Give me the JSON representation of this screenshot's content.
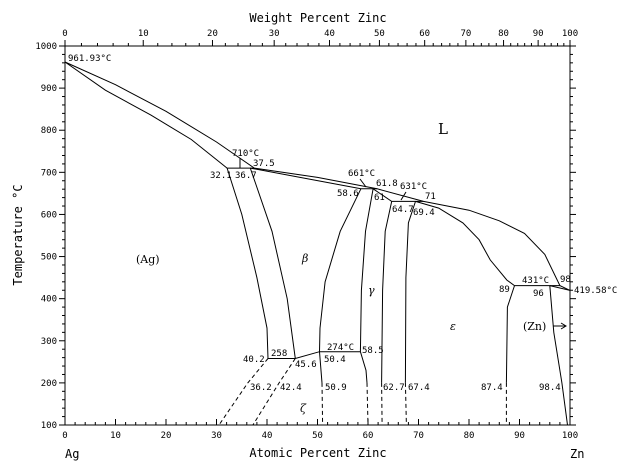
{
  "diagram": {
    "top_axis_title": "Weight Percent Zinc",
    "bottom_axis_title": "Atomic Percent Zinc",
    "y_axis_title": "Temperature °C",
    "left_element": "Ag",
    "right_element": "Zn",
    "x_ticks": [
      "0",
      "10",
      "20",
      "30",
      "40",
      "50",
      "60",
      "70",
      "80",
      "90",
      "100"
    ],
    "top_ticks": [
      "0",
      "10",
      "20",
      "30",
      "40",
      "50",
      "60",
      "70",
      "80",
      "90",
      "100"
    ],
    "y_ticks": [
      "100",
      "200",
      "300",
      "400",
      "500",
      "600",
      "700",
      "800",
      "900",
      "1000"
    ],
    "phases": {
      "L": "L",
      "Ag": "(Ag)",
      "beta": "β",
      "gamma": "γ",
      "epsilon": "ε",
      "zeta": "ζ",
      "Zn": "(Zn)"
    },
    "annotations": {
      "t_ag": "961.93°C",
      "t710": "710°C",
      "c375": "37.5",
      "c321": "32.1",
      "c367": "36.7",
      "t661": "661°C",
      "c618": "61.8",
      "c586": "58.6",
      "c61": "61",
      "t631": "631°C",
      "c71": "71",
      "c647": "64.7",
      "c694": "69.4",
      "t431": "431°C",
      "c98": "98",
      "c89": "89",
      "c96": "96",
      "t_zn": "419.58°C",
      "t274": "274°C",
      "c585": "58.5",
      "c402": "40.2",
      "t258": "258",
      "c456": "45.6",
      "c504": "50.4",
      "c362": "36.2",
      "c424": "42.4",
      "c509": "50.9",
      "c627": "62.7",
      "c674": "67.4",
      "c874": "87.4",
      "c984": "98.4"
    }
  },
  "chart_data": {
    "type": "phase-diagram",
    "x_axis": "Atomic Percent Zinc",
    "y_axis": "Temperature °C",
    "xlim": [
      0,
      100
    ],
    "ylim": [
      100,
      1000
    ],
    "solid_lines": [
      [
        [
          0,
          961.93
        ],
        [
          10,
          908
        ],
        [
          20,
          845
        ],
        [
          30,
          772
        ],
        [
          37.5,
          710
        ],
        [
          50,
          688
        ],
        [
          61.8,
          661
        ],
        [
          71,
          631
        ],
        [
          80,
          610
        ],
        [
          86,
          585
        ],
        [
          91,
          555
        ],
        [
          95,
          505
        ],
        [
          98,
          431
        ],
        [
          100,
          419.58
        ]
      ],
      [
        [
          0,
          961.93
        ],
        [
          8,
          895
        ],
        [
          17,
          836
        ],
        [
          25,
          778
        ],
        [
          32.1,
          710
        ],
        [
          37.5,
          710
        ]
      ],
      [
        [
          36.7,
          710
        ],
        [
          48,
          685
        ],
        [
          58.6,
          661
        ],
        [
          61.8,
          661
        ]
      ],
      [
        [
          61,
          661
        ],
        [
          64.7,
          631
        ],
        [
          71,
          631
        ]
      ],
      [
        [
          69.4,
          631
        ],
        [
          74,
          615
        ],
        [
          78.8,
          580
        ],
        [
          82,
          540
        ],
        [
          84.2,
          492
        ],
        [
          87.5,
          444
        ],
        [
          89,
          431
        ],
        [
          98,
          431
        ]
      ],
      [
        [
          96,
          431
        ],
        [
          100,
          419.58
        ]
      ],
      [
        [
          32.1,
          710
        ],
        [
          35,
          600
        ],
        [
          38,
          450
        ],
        [
          40,
          330
        ],
        [
          40.2,
          258
        ],
        [
          45.6,
          258
        ],
        [
          50.4,
          274
        ],
        [
          58.5,
          274
        ]
      ],
      [
        [
          36.7,
          710
        ],
        [
          41,
          560
        ],
        [
          44,
          400
        ],
        [
          45.6,
          258
        ]
      ],
      [
        [
          58.6,
          661
        ],
        [
          54.5,
          560
        ],
        [
          51.5,
          440
        ],
        [
          50.5,
          330
        ],
        [
          50.4,
          274
        ],
        [
          50.9,
          200
        ]
      ],
      [
        [
          61,
          661
        ],
        [
          59.5,
          560
        ],
        [
          58.7,
          420
        ],
        [
          58.5,
          274
        ],
        [
          59.6,
          230
        ],
        [
          59.8,
          200
        ]
      ],
      [
        [
          64.7,
          631
        ],
        [
          63.4,
          560
        ],
        [
          62.9,
          420
        ],
        [
          62.7,
          200
        ]
      ],
      [
        [
          69.4,
          631
        ],
        [
          68,
          580
        ],
        [
          67.5,
          450
        ],
        [
          67.4,
          200
        ]
      ],
      [
        [
          89,
          431
        ],
        [
          87.6,
          380
        ],
        [
          87.4,
          200
        ]
      ],
      [
        [
          96,
          431
        ],
        [
          96.8,
          320
        ],
        [
          98.4,
          200
        ],
        [
          99.5,
          100
        ]
      ]
    ],
    "dashed_lines": [
      [
        [
          40.2,
          258
        ],
        [
          36.2,
          200
        ],
        [
          30.5,
          100
        ]
      ],
      [
        [
          45.6,
          258
        ],
        [
          42.4,
          200
        ],
        [
          37.2,
          100
        ]
      ],
      [
        [
          50.9,
          200
        ],
        [
          51,
          100
        ]
      ],
      [
        [
          59.8,
          200
        ],
        [
          60,
          100
        ]
      ],
      [
        [
          62.7,
          200
        ],
        [
          62.8,
          100
        ]
      ],
      [
        [
          67.4,
          200
        ],
        [
          67.6,
          100
        ]
      ],
      [
        [
          87.4,
          200
        ],
        [
          87.4,
          100
        ]
      ]
    ],
    "weight_axis_molar_masses": {
      "Zn": 65.38,
      "Ag": 107.87
    }
  }
}
